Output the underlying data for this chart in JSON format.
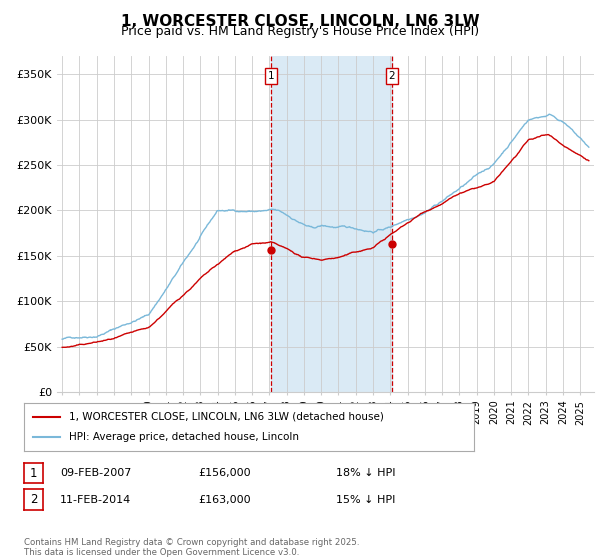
{
  "title": "1, WORCESTER CLOSE, LINCOLN, LN6 3LW",
  "subtitle": "Price paid vs. HM Land Registry's House Price Index (HPI)",
  "ylim": [
    0,
    370000
  ],
  "yticks": [
    0,
    50000,
    100000,
    150000,
    200000,
    250000,
    300000,
    350000
  ],
  "ytick_labels": [
    "£0",
    "£50K",
    "£100K",
    "£150K",
    "£200K",
    "£250K",
    "£300K",
    "£350K"
  ],
  "sale1_date": 2007.1,
  "sale1_price": 156000,
  "sale1_label": "1",
  "sale2_date": 2014.1,
  "sale2_price": 163000,
  "sale2_label": "2",
  "hpi_color": "#7ab8d9",
  "sale_color": "#cc0000",
  "marker_color": "#cc0000",
  "shade_color": "#daeaf5",
  "vline_color": "#cc0000",
  "background_color": "#ffffff",
  "grid_color": "#cccccc",
  "legend1": "1, WORCESTER CLOSE, LINCOLN, LN6 3LW (detached house)",
  "legend2": "HPI: Average price, detached house, Lincoln",
  "annot1_date": "09-FEB-2007",
  "annot1_price": "£156,000",
  "annot1_pct": "18% ↓ HPI",
  "annot2_date": "11-FEB-2014",
  "annot2_price": "£163,000",
  "annot2_pct": "15% ↓ HPI",
  "footer": "Contains HM Land Registry data © Crown copyright and database right 2025.\nThis data is licensed under the Open Government Licence v3.0.",
  "title_fontsize": 11,
  "subtitle_fontsize": 9,
  "xmin": 1994.7,
  "xmax": 2025.8
}
